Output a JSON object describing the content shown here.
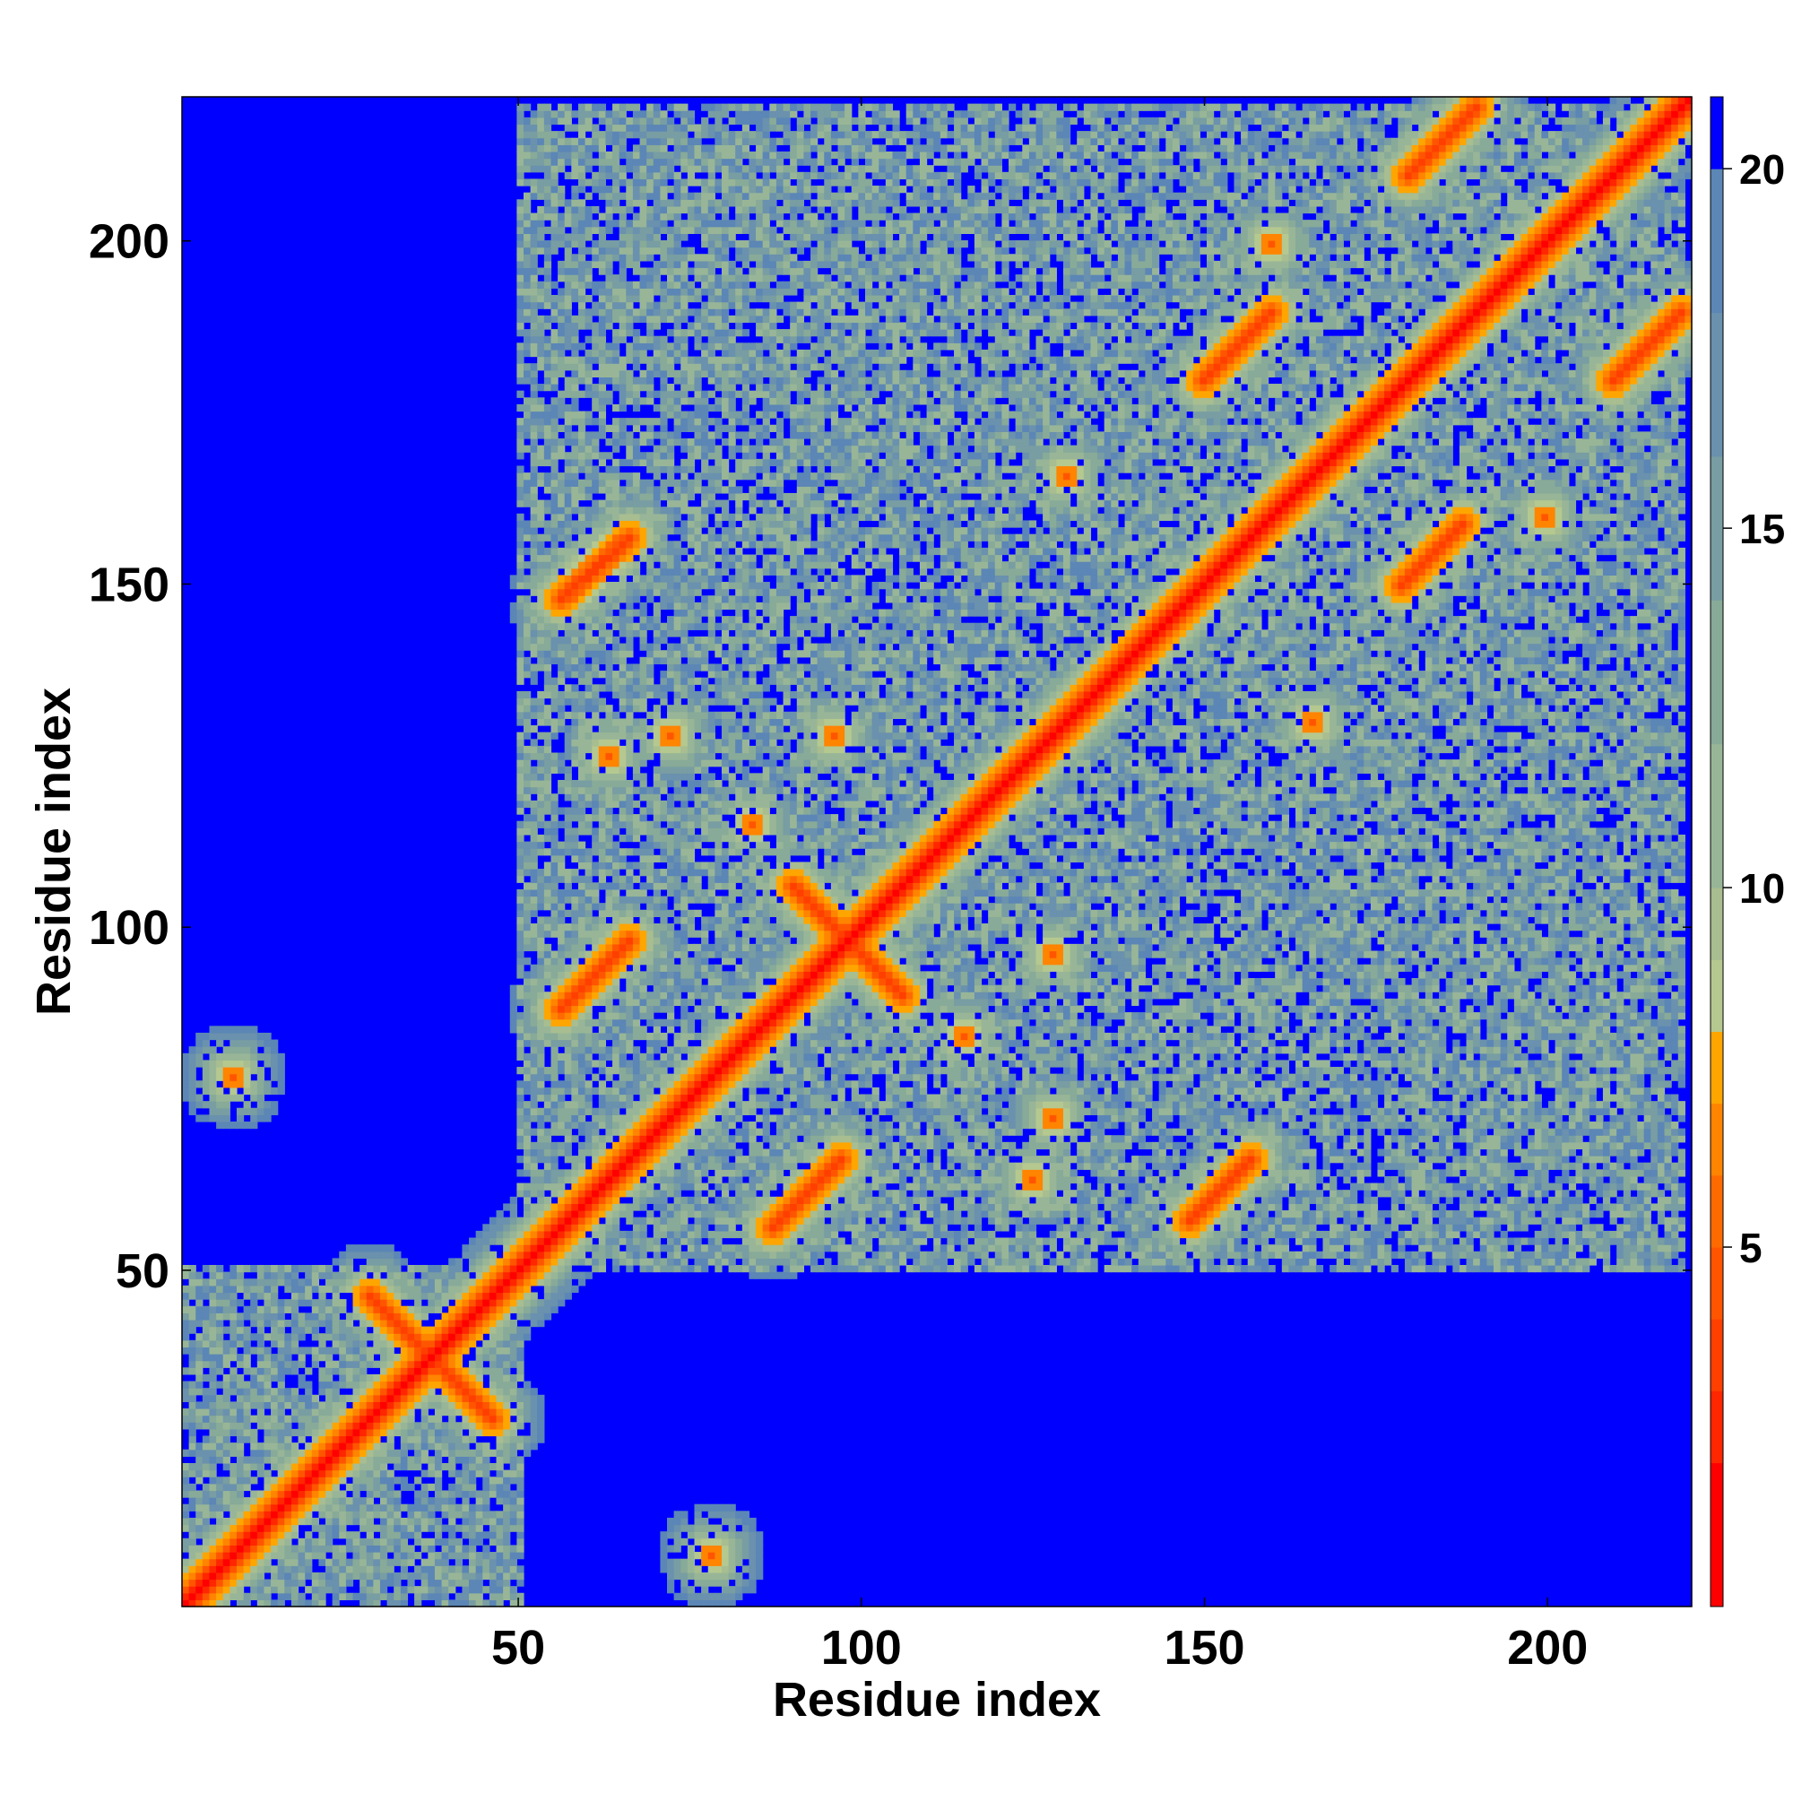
{
  "chart_data": {
    "type": "heatmap",
    "title": "",
    "xlabel": "Residue index",
    "ylabel": "Residue index",
    "n_residues": 221,
    "xlim": [
      1,
      221
    ],
    "ylim": [
      1,
      221
    ],
    "x_ticks": [
      50,
      100,
      150,
      200
    ],
    "y_ticks": [
      50,
      100,
      150,
      200
    ],
    "grid": false,
    "colorbar": {
      "ticks": [
        5,
        10,
        15,
        20
      ],
      "range": [
        0,
        21
      ],
      "levels": [
        {
          "from": 0,
          "to": 2,
          "color": "#ff0000"
        },
        {
          "from": 2,
          "to": 3,
          "color": "#ff2600"
        },
        {
          "from": 3,
          "to": 4,
          "color": "#ff3f00"
        },
        {
          "from": 4,
          "to": 5,
          "color": "#ff5500"
        },
        {
          "from": 5,
          "to": 6,
          "color": "#ff6a00"
        },
        {
          "from": 6,
          "to": 7,
          "color": "#ff8400"
        },
        {
          "from": 7,
          "to": 8,
          "color": "#ffa500"
        },
        {
          "from": 8,
          "to": 9,
          "color": "#b5c88f"
        },
        {
          "from": 9,
          "to": 10,
          "color": "#a8bd90"
        },
        {
          "from": 10,
          "to": 12,
          "color": "#98b697"
        },
        {
          "from": 12,
          "to": 14,
          "color": "#88aa98"
        },
        {
          "from": 14,
          "to": 16,
          "color": "#789da2"
        },
        {
          "from": 16,
          "to": 18,
          "color": "#6a91ad"
        },
        {
          "from": 18,
          "to": 20,
          "color": "#5b86b6"
        },
        {
          "from": 20,
          "to": 21,
          "color": "#0000ff"
        }
      ]
    },
    "matrix_description": "Symmetric residue-residue distance map (values in Angstrom, capped at 20). Red diagonal band, secondary-structure contact stripes parallel and antiparallel to the diagonal.",
    "features": [
      {
        "kind": "diagonal",
        "width": 2.2
      },
      {
        "kind": "parallel",
        "i0": 56,
        "j0": 88,
        "i1": 66,
        "j1": 98
      },
      {
        "kind": "parallel",
        "i0": 87,
        "j0": 56,
        "i1": 97,
        "j1": 66
      },
      {
        "kind": "parallel",
        "i0": 56,
        "j0": 148,
        "i1": 66,
        "j1": 157
      },
      {
        "kind": "parallel",
        "i0": 148,
        "j0": 57,
        "i1": 157,
        "j1": 66
      },
      {
        "kind": "antiparallel",
        "i0": 90,
        "j0": 106,
        "i1": 106,
        "j1": 90
      },
      {
        "kind": "parallel",
        "i0": 150,
        "j0": 180,
        "i1": 160,
        "j1": 190
      },
      {
        "kind": "parallel",
        "i0": 179,
        "j0": 150,
        "i1": 188,
        "j1": 159
      },
      {
        "kind": "parallel",
        "i0": 180,
        "j0": 210,
        "i1": 190,
        "j1": 220
      },
      {
        "kind": "parallel",
        "i0": 210,
        "j0": 180,
        "i1": 220,
        "j1": 190
      },
      {
        "kind": "antiparallel",
        "i0": 28,
        "j0": 46,
        "i1": 46,
        "j1": 28
      },
      {
        "kind": "blob",
        "i": 8,
        "j": 78,
        "r": 3
      },
      {
        "kind": "blob",
        "i": 78,
        "j": 8,
        "r": 3
      },
      {
        "kind": "blob",
        "i": 72,
        "j": 128,
        "r": 4
      },
      {
        "kind": "blob",
        "i": 128,
        "j": 72,
        "r": 4
      },
      {
        "kind": "blob",
        "i": 125,
        "j": 125,
        "r": 3
      },
      {
        "kind": "blob",
        "i": 96,
        "j": 128,
        "r": 4
      },
      {
        "kind": "blob",
        "i": 128,
        "j": 96,
        "r": 4
      },
      {
        "kind": "blob",
        "i": 130,
        "j": 166,
        "r": 4
      },
      {
        "kind": "blob",
        "i": 166,
        "j": 130,
        "r": 4
      },
      {
        "kind": "blob",
        "i": 200,
        "j": 160,
        "r": 4
      },
      {
        "kind": "blob",
        "i": 160,
        "j": 200,
        "r": 4
      },
      {
        "kind": "blob",
        "i": 63,
        "j": 125,
        "r": 3
      },
      {
        "kind": "blob",
        "i": 125,
        "j": 63,
        "r": 3
      },
      {
        "kind": "blob",
        "i": 115,
        "j": 84,
        "r": 3
      },
      {
        "kind": "blob",
        "i": 84,
        "j": 115,
        "r": 3
      }
    ],
    "regions": [
      {
        "i": [
          1,
          50
        ],
        "j": [
          1,
          50
        ]
      },
      {
        "i": [
          50,
          220
        ],
        "j": [
          50,
          220
        ]
      }
    ]
  }
}
